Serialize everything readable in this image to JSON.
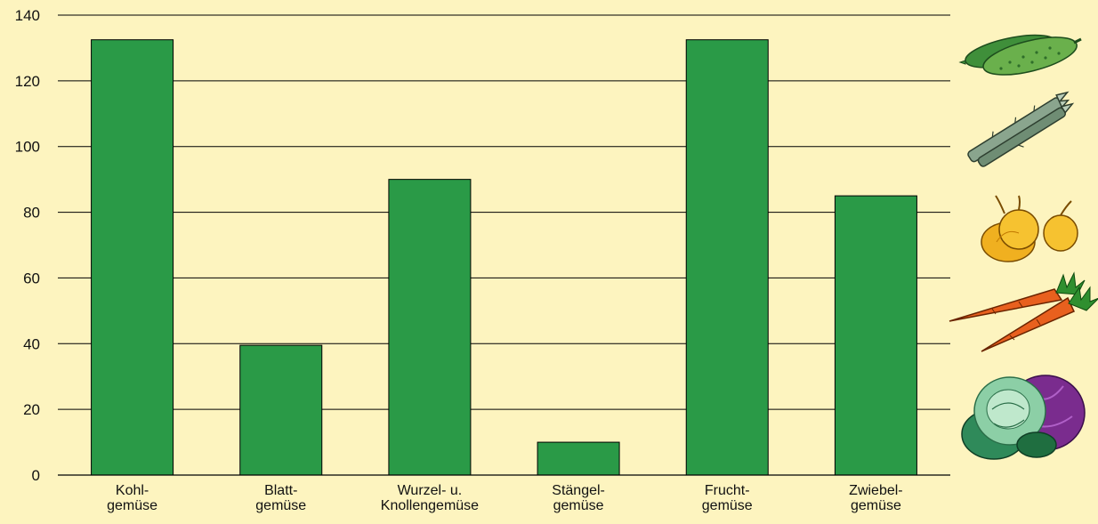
{
  "chart_data": {
    "type": "bar",
    "categories": [
      [
        "Kohl-",
        "gemüse"
      ],
      [
        "Blatt-",
        "gemüse"
      ],
      [
        "Wurzel- u.",
        "Knollengemüse"
      ],
      [
        "Stängel-",
        "gemüse"
      ],
      [
        "Frucht-",
        "gemüse"
      ],
      [
        "Zwiebel-",
        "gemüse"
      ]
    ],
    "values": [
      132.5,
      39.5,
      90,
      10,
      132.5,
      85
    ],
    "ylim": [
      0,
      140
    ],
    "yticks": [
      0,
      20,
      40,
      60,
      80,
      100,
      120,
      140
    ],
    "grid": true,
    "title": "",
    "xlabel": "",
    "ylabel": "",
    "bar_color": "#2a9a47",
    "background_color": "#fdf4bf",
    "decorations": [
      "cucumber-icon",
      "asparagus-icon",
      "onion-icon",
      "carrot-icon",
      "cabbage-icon"
    ]
  }
}
